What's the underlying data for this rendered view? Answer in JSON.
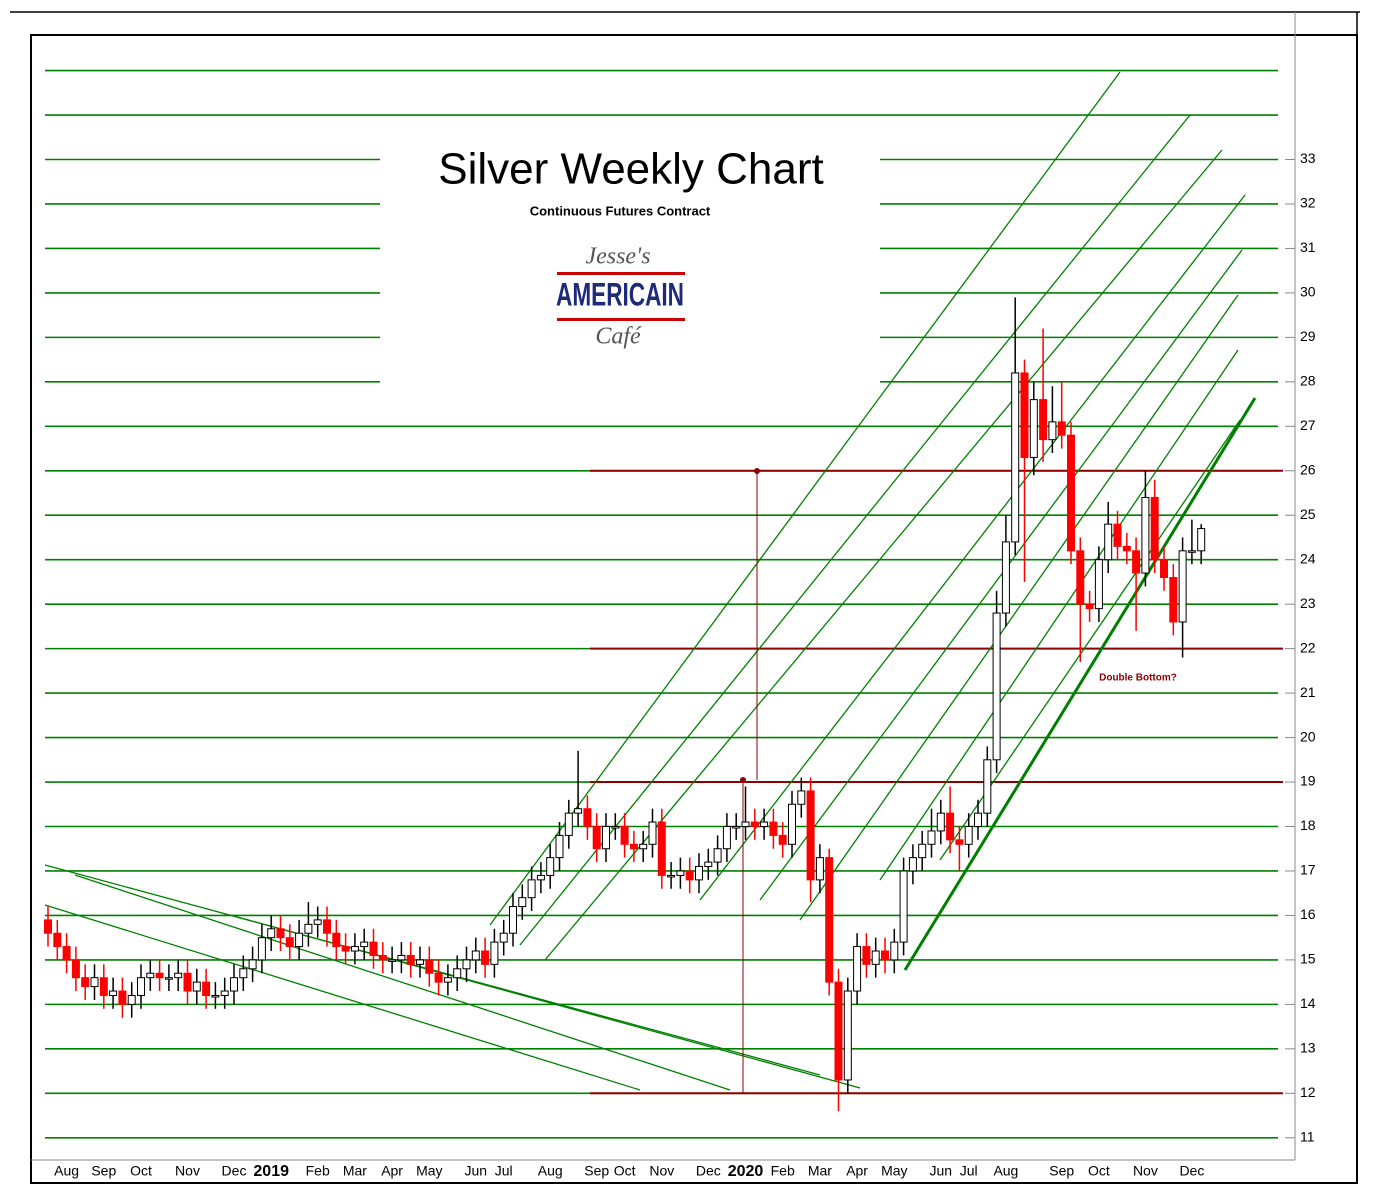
{
  "chart_data": {
    "type": "candlestick",
    "title": "Silver Weekly Chart",
    "subtitle": "Continuous Futures Contract",
    "logo": {
      "top": "Jesse's",
      "middle": "AMERICAIN",
      "bottom": "Café"
    },
    "annotation": "Double Bottom?",
    "categories": [
      null,
      null,
      "Aug",
      null,
      null,
      null,
      "Sep",
      null,
      null,
      null,
      "Oct",
      null,
      null,
      null,
      null,
      "Nov",
      null,
      null,
      null,
      null,
      "Dec",
      null,
      null,
      null,
      "2019",
      null,
      null,
      null,
      null,
      "Feb",
      null,
      null,
      null,
      "Mar",
      null,
      null,
      null,
      "Apr",
      null,
      null,
      null,
      "May",
      null,
      null,
      null,
      null,
      "Jun",
      null,
      null,
      "Jul",
      null,
      null,
      null,
      null,
      "Aug",
      null,
      null,
      null,
      null,
      "Sep",
      null,
      null,
      "Oct",
      null,
      null,
      null,
      "Nov",
      null,
      null,
      null,
      null,
      "Dec",
      null,
      null,
      null,
      "2020",
      null,
      null,
      null,
      "Feb",
      null,
      null,
      null,
      "Mar",
      null,
      null,
      null,
      "Apr",
      null,
      null,
      null,
      "May",
      null,
      null,
      null,
      null,
      "Jun",
      null,
      null,
      "Jul",
      null,
      null,
      null,
      "Aug",
      null,
      null,
      null,
      null,
      null,
      "Sep",
      null,
      null,
      null,
      "Oct",
      null,
      null,
      null,
      null,
      "Nov",
      null,
      null,
      null,
      null,
      "Dec",
      null
    ],
    "ohlc": [
      [
        15.9,
        16.2,
        15.3,
        15.6
      ],
      [
        15.6,
        15.9,
        15.0,
        15.3
      ],
      [
        15.3,
        15.6,
        14.7,
        15.0
      ],
      [
        15.0,
        15.3,
        14.3,
        14.6
      ],
      [
        14.6,
        14.9,
        14.1,
        14.4
      ],
      [
        14.4,
        14.9,
        14.1,
        14.6
      ],
      [
        14.6,
        14.9,
        13.9,
        14.2
      ],
      [
        14.2,
        14.6,
        13.9,
        14.3
      ],
      [
        14.3,
        14.6,
        13.7,
        14.0
      ],
      [
        14.0,
        14.5,
        13.7,
        14.2
      ],
      [
        14.2,
        14.9,
        13.9,
        14.6
      ],
      [
        14.6,
        15.0,
        14.3,
        14.7
      ],
      [
        14.7,
        15.0,
        14.3,
        14.6
      ],
      [
        14.6,
        14.9,
        14.3,
        14.6
      ],
      [
        14.6,
        15.0,
        14.3,
        14.7
      ],
      [
        14.7,
        15.0,
        14.0,
        14.3
      ],
      [
        14.3,
        14.8,
        14.0,
        14.5
      ],
      [
        14.5,
        14.8,
        13.9,
        14.2
      ],
      [
        14.2,
        14.5,
        13.9,
        14.2
      ],
      [
        14.2,
        14.6,
        13.9,
        14.3
      ],
      [
        14.3,
        14.9,
        14.0,
        14.6
      ],
      [
        14.6,
        15.1,
        14.3,
        14.8
      ],
      [
        14.8,
        15.3,
        14.5,
        15.0
      ],
      [
        15.0,
        15.8,
        14.7,
        15.5
      ],
      [
        15.5,
        16.0,
        15.2,
        15.7
      ],
      [
        15.7,
        16.0,
        15.2,
        15.5
      ],
      [
        15.5,
        15.8,
        15.0,
        15.3
      ],
      [
        15.3,
        15.9,
        15.0,
        15.6
      ],
      [
        15.6,
        16.3,
        15.3,
        15.8
      ],
      [
        15.8,
        16.2,
        15.5,
        15.9
      ],
      [
        15.9,
        16.2,
        15.3,
        15.6
      ],
      [
        15.6,
        15.9,
        15.0,
        15.3
      ],
      [
        15.3,
        15.6,
        14.9,
        15.2
      ],
      [
        15.2,
        15.6,
        14.9,
        15.3
      ],
      [
        15.3,
        15.7,
        15.0,
        15.4
      ],
      [
        15.4,
        15.7,
        14.8,
        15.1
      ],
      [
        15.1,
        15.4,
        14.7,
        15.0
      ],
      [
        15.0,
        15.3,
        14.7,
        15.0
      ],
      [
        15.0,
        15.4,
        14.7,
        15.1
      ],
      [
        15.1,
        15.4,
        14.6,
        14.9
      ],
      [
        14.9,
        15.3,
        14.6,
        15.0
      ],
      [
        15.0,
        15.3,
        14.4,
        14.7
      ],
      [
        14.7,
        15.0,
        14.2,
        14.5
      ],
      [
        14.5,
        14.9,
        14.2,
        14.6
      ],
      [
        14.6,
        15.1,
        14.3,
        14.8
      ],
      [
        14.8,
        15.3,
        14.5,
        15.0
      ],
      [
        15.0,
        15.5,
        14.7,
        15.2
      ],
      [
        15.2,
        15.5,
        14.6,
        14.9
      ],
      [
        14.9,
        15.7,
        14.6,
        15.4
      ],
      [
        15.4,
        15.9,
        15.1,
        15.6
      ],
      [
        15.6,
        16.5,
        15.3,
        16.2
      ],
      [
        16.2,
        16.7,
        15.9,
        16.4
      ],
      [
        16.4,
        17.1,
        16.1,
        16.8
      ],
      [
        16.8,
        17.2,
        16.5,
        16.9
      ],
      [
        16.9,
        17.6,
        16.6,
        17.3
      ],
      [
        17.3,
        18.1,
        17.0,
        17.8
      ],
      [
        17.8,
        18.6,
        17.5,
        18.3
      ],
      [
        18.3,
        19.7,
        18.0,
        18.4
      ],
      [
        18.4,
        18.7,
        17.7,
        18.0
      ],
      [
        18.0,
        18.3,
        17.2,
        17.5
      ],
      [
        17.5,
        18.3,
        17.2,
        18.0
      ],
      [
        18.0,
        18.3,
        17.7,
        18.0
      ],
      [
        18.0,
        18.3,
        17.3,
        17.6
      ],
      [
        17.6,
        17.9,
        17.2,
        17.5
      ],
      [
        17.5,
        17.9,
        17.2,
        17.6
      ],
      [
        17.6,
        18.4,
        17.3,
        18.1
      ],
      [
        18.1,
        18.4,
        16.6,
        16.9
      ],
      [
        16.9,
        17.2,
        16.6,
        16.9
      ],
      [
        16.9,
        17.3,
        16.6,
        17.0
      ],
      [
        17.0,
        17.3,
        16.5,
        16.8
      ],
      [
        16.8,
        17.4,
        16.5,
        17.1
      ],
      [
        17.1,
        17.5,
        16.8,
        17.2
      ],
      [
        17.2,
        17.8,
        16.9,
        17.5
      ],
      [
        17.5,
        18.3,
        17.2,
        18.0
      ],
      [
        18.0,
        18.3,
        17.7,
        18.0
      ],
      [
        18.0,
        18.9,
        17.7,
        18.1
      ],
      [
        18.1,
        18.4,
        17.7,
        18.0
      ],
      [
        18.0,
        18.4,
        17.7,
        18.1
      ],
      [
        18.1,
        18.4,
        17.5,
        17.8
      ],
      [
        17.8,
        18.1,
        17.3,
        17.6
      ],
      [
        17.6,
        18.8,
        17.3,
        18.5
      ],
      [
        18.5,
        19.1,
        18.2,
        18.8
      ],
      [
        18.8,
        19.1,
        16.3,
        16.8
      ],
      [
        16.8,
        17.6,
        16.5,
        17.3
      ],
      [
        17.3,
        17.5,
        14.2,
        14.5
      ],
      [
        14.5,
        14.8,
        11.6,
        12.3
      ],
      [
        12.3,
        14.6,
        12.0,
        14.3
      ],
      [
        14.3,
        15.6,
        14.0,
        15.3
      ],
      [
        15.3,
        15.6,
        14.6,
        14.9
      ],
      [
        14.9,
        15.5,
        14.6,
        15.2
      ],
      [
        15.2,
        15.5,
        14.7,
        15.0
      ],
      [
        15.0,
        15.7,
        14.7,
        15.4
      ],
      [
        15.4,
        17.3,
        15.1,
        17.0
      ],
      [
        17.0,
        17.6,
        16.7,
        17.3
      ],
      [
        17.3,
        17.9,
        17.0,
        17.6
      ],
      [
        17.6,
        18.4,
        17.3,
        17.9
      ],
      [
        17.9,
        18.6,
        17.6,
        18.3
      ],
      [
        18.3,
        18.9,
        17.4,
        17.7
      ],
      [
        17.7,
        18.0,
        17.0,
        17.6
      ],
      [
        17.6,
        18.3,
        17.3,
        18.0
      ],
      [
        18.0,
        18.6,
        17.7,
        18.3
      ],
      [
        18.3,
        19.8,
        18.0,
        19.5
      ],
      [
        19.5,
        23.3,
        19.2,
        22.8
      ],
      [
        22.8,
        25.0,
        22.5,
        24.4
      ],
      [
        24.4,
        29.9,
        24.1,
        28.2
      ],
      [
        28.2,
        28.5,
        23.5,
        26.3
      ],
      [
        26.3,
        28.0,
        25.9,
        27.6
      ],
      [
        27.6,
        29.2,
        26.2,
        26.7
      ],
      [
        26.7,
        27.9,
        26.4,
        27.1
      ],
      [
        27.1,
        28.0,
        26.5,
        26.8
      ],
      [
        26.8,
        27.1,
        23.9,
        24.2
      ],
      [
        24.2,
        24.5,
        21.7,
        23.0
      ],
      [
        23.0,
        23.3,
        22.6,
        22.9
      ],
      [
        22.9,
        24.3,
        22.6,
        24.0
      ],
      [
        24.0,
        25.3,
        23.7,
        24.8
      ],
      [
        24.8,
        25.1,
        24.0,
        24.3
      ],
      [
        24.3,
        24.6,
        23.9,
        24.2
      ],
      [
        24.2,
        24.5,
        22.4,
        23.7
      ],
      [
        23.7,
        26.0,
        23.4,
        25.4
      ],
      [
        25.4,
        25.8,
        23.7,
        24.0
      ],
      [
        24.0,
        24.3,
        23.3,
        23.6
      ],
      [
        23.6,
        23.9,
        22.3,
        22.6
      ],
      [
        22.6,
        24.5,
        21.8,
        24.2
      ],
      [
        24.2,
        24.9,
        23.9,
        24.2
      ],
      [
        24.2,
        24.8,
        23.9,
        24.7
      ]
    ],
    "up_color": "#ffffff",
    "down_color": "#ff0000",
    "ylim": [
      10.5,
      35.8
    ],
    "yticks": [
      11,
      12,
      13,
      14,
      15,
      16,
      17,
      18,
      19,
      20,
      21,
      22,
      23,
      24,
      25,
      26,
      27,
      28,
      29,
      30,
      31,
      32,
      33
    ],
    "support_levels": [
      11,
      12,
      13,
      14,
      15,
      16,
      17,
      18,
      19,
      20,
      21,
      22,
      23,
      24,
      25,
      26,
      27,
      28,
      29,
      30,
      31,
      32,
      33,
      34,
      35
    ],
    "support_color": "#008000",
    "resistance_levels": [
      26,
      22,
      19,
      12
    ],
    "resistance_color": "#8b0000"
  }
}
